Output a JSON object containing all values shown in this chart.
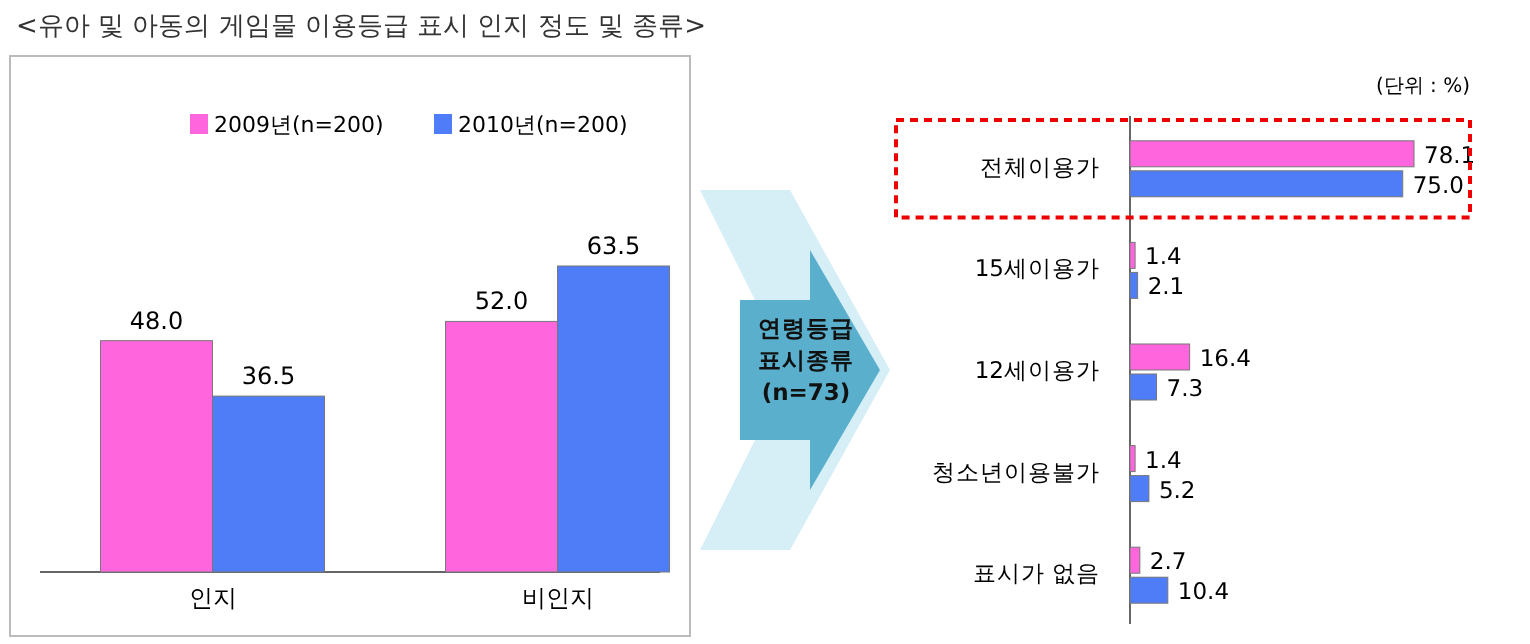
{
  "chart_data": [
    {
      "type": "bar",
      "title": "<유아 및 아동의 게임물 이용등급 표시 인지 정도 및 종류>",
      "categories": [
        "인지",
        "비인지"
      ],
      "legend": "top",
      "series": [
        {
          "name": "2009년(n=200)",
          "color": "#ff66dd",
          "values": [
            48.0,
            52.0
          ],
          "value_labels": [
            "48.0",
            "52.0"
          ]
        },
        {
          "name": "2010년(n=200)",
          "color": "#4f7cf7",
          "values": [
            36.5,
            63.5
          ],
          "value_labels": [
            "36.5",
            "63.5"
          ]
        }
      ]
    },
    {
      "type": "bar",
      "orientation": "horizontal",
      "categories": [
        "전체이용가",
        "15세이용가",
        "12세이용가",
        "청소년이용불가",
        "표시가 없음"
      ],
      "annotations": [
        "(단위 : %)",
        "연령등급 표시종류 (n=73)"
      ],
      "series": [
        {
          "color": "#ff66dd",
          "values": [
            78.1,
            1.4,
            16.4,
            1.4,
            2.7
          ],
          "value_labels": [
            "78.1",
            "1.4",
            "16.4",
            "1.4",
            "2.7"
          ]
        },
        {
          "color": "#4f7cf7",
          "values": [
            75.0,
            2.1,
            7.3,
            5.2,
            10.4
          ],
          "value_labels": [
            "75.0",
            "2.1",
            "7.3",
            "5.2",
            "10.4"
          ]
        }
      ]
    }
  ]
}
